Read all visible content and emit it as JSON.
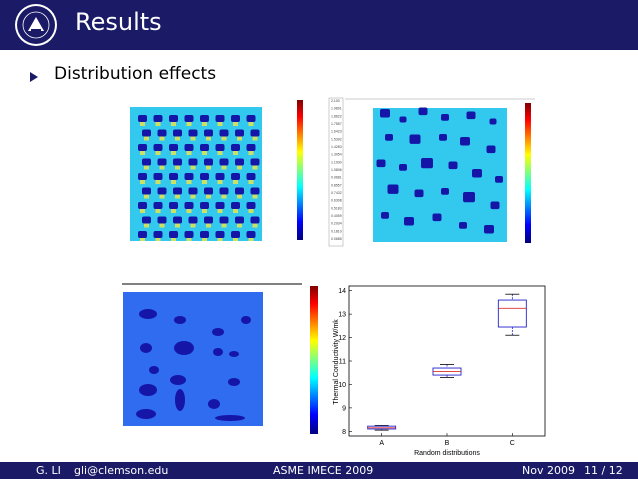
{
  "slide": {
    "title": "Results",
    "bullet": "Distribution effects"
  },
  "footer": {
    "author": "G. LI",
    "email": "gli@clemson.edu",
    "conference": "ASME IMECE 2009",
    "date": "Nov 2009",
    "page": "11 / 12"
  },
  "colors": {
    "theme": "#1a1a66",
    "field_background": "#33c8ee",
    "particle": "#1515a8",
    "box_blue": "#2222cc",
    "median_red": "#e03030"
  },
  "icons": [
    "university-seal-logo",
    "bullet-triangle-icon"
  ],
  "colorbar_ticks": [
    "2.100",
    "1.9891",
    "1.8622",
    "1.7557",
    "1.6423",
    "1.5392",
    "1.4283",
    "1.3054",
    "1.1930",
    "1.0806",
    "0.9681",
    "0.8557",
    "0.7432",
    "0.6308",
    "0.5183",
    "0.4059",
    "0.2934",
    "0.1810",
    "0.0685"
  ],
  "chart_data": {
    "type": "box",
    "xlabel": "Random distributions",
    "ylabel": "Thermal Conductivity W/mk",
    "categories": [
      "A",
      "B",
      "C"
    ],
    "ylim": [
      7.8,
      14.2
    ],
    "yticks": [
      8,
      9,
      10,
      11,
      12,
      13,
      14
    ],
    "boxes": [
      {
        "category": "A",
        "whisker_low": 8.05,
        "q1": 8.1,
        "median": 8.15,
        "q3": 8.22,
        "whisker_high": 8.25
      },
      {
        "category": "B",
        "whisker_low": 10.3,
        "q1": 10.4,
        "median": 10.55,
        "q3": 10.7,
        "whisker_high": 10.85
      },
      {
        "category": "C",
        "whisker_low": 12.1,
        "q1": 12.45,
        "median": 13.25,
        "q3": 13.6,
        "whisker_high": 13.85
      }
    ]
  }
}
